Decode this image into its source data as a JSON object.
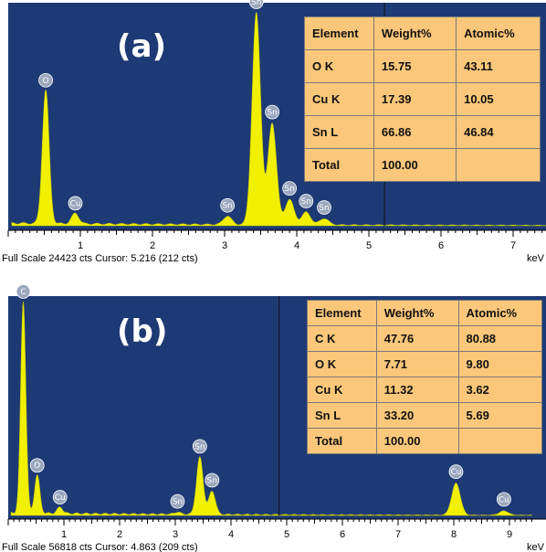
{
  "chart_data": [
    {
      "type": "spectrum",
      "panel_label": "(a)",
      "xlabel": "keV",
      "xlim": [
        0,
        7.8
      ],
      "x_ticks": [
        "1",
        "2",
        "3",
        "4",
        "5",
        "6",
        "7"
      ],
      "ylim": [
        0,
        1
      ],
      "status_text": "Full Scale 24423 cts Cursor: 5.216  (212 cts)",
      "cursor_x": 5.216,
      "peaks": [
        {
          "label": "O",
          "x": 0.52,
          "height": 0.63
        },
        {
          "label": "Cu",
          "x": 0.93,
          "height": 0.05
        },
        {
          "label": "Sn",
          "x": 3.04,
          "height": 0.04
        },
        {
          "label": "Sn",
          "x": 3.44,
          "height": 1.0
        },
        {
          "label": "Sn",
          "x": 3.66,
          "height": 0.48
        },
        {
          "label": "Sn",
          "x": 3.9,
          "height": 0.12
        },
        {
          "label": "Sn",
          "x": 4.13,
          "height": 0.06
        },
        {
          "label": "Sn",
          "x": 4.38,
          "height": 0.03
        }
      ],
      "table": {
        "headers": [
          "Element",
          "Weight%",
          "Atomic%"
        ],
        "rows": [
          [
            "O K",
            "15.75",
            "43.11"
          ],
          [
            "Cu K",
            "17.39",
            "10.05"
          ],
          [
            "Sn L",
            "66.86",
            "46.84"
          ],
          [
            "Total",
            "100.00",
            ""
          ]
        ]
      }
    },
    {
      "type": "spectrum",
      "panel_label": "(b)",
      "xlabel": "keV",
      "xlim": [
        0,
        9.4
      ],
      "x_ticks": [
        "1",
        "2",
        "3",
        "4",
        "5",
        "6",
        "7",
        "8",
        "9"
      ],
      "ylim": [
        0,
        1
      ],
      "status_text": "Full Scale 56818 cts Cursor: 4.863  (209 cts)",
      "cursor_x": 4.863,
      "peaks": [
        {
          "label": "C",
          "x": 0.27,
          "height": 1.0
        },
        {
          "label": "O",
          "x": 0.52,
          "height": 0.18
        },
        {
          "label": "Cu",
          "x": 0.93,
          "height": 0.03
        },
        {
          "label": "Sn",
          "x": 3.04,
          "height": 0.01
        },
        {
          "label": "Sn",
          "x": 3.44,
          "height": 0.27
        },
        {
          "label": "Sn",
          "x": 3.66,
          "height": 0.11
        },
        {
          "label": "Cu",
          "x": 8.04,
          "height": 0.15
        },
        {
          "label": "Cu",
          "x": 8.9,
          "height": 0.02
        }
      ],
      "table": {
        "headers": [
          "Element",
          "Weight%",
          "Atomic%"
        ],
        "rows": [
          [
            "C K",
            "47.76",
            "80.88"
          ],
          [
            "O K",
            "7.71",
            "9.80"
          ],
          [
            "Cu K",
            "11.32",
            "3.62"
          ],
          [
            "Sn L",
            "33.20",
            "5.69"
          ],
          [
            "Total",
            "100.00",
            ""
          ]
        ]
      }
    }
  ],
  "colors": {
    "plot_background": "#1e3a75",
    "spectrum_fill": "#f0f000",
    "table_background": "#fbc77a",
    "peak_marker": "#9aa7bd"
  }
}
